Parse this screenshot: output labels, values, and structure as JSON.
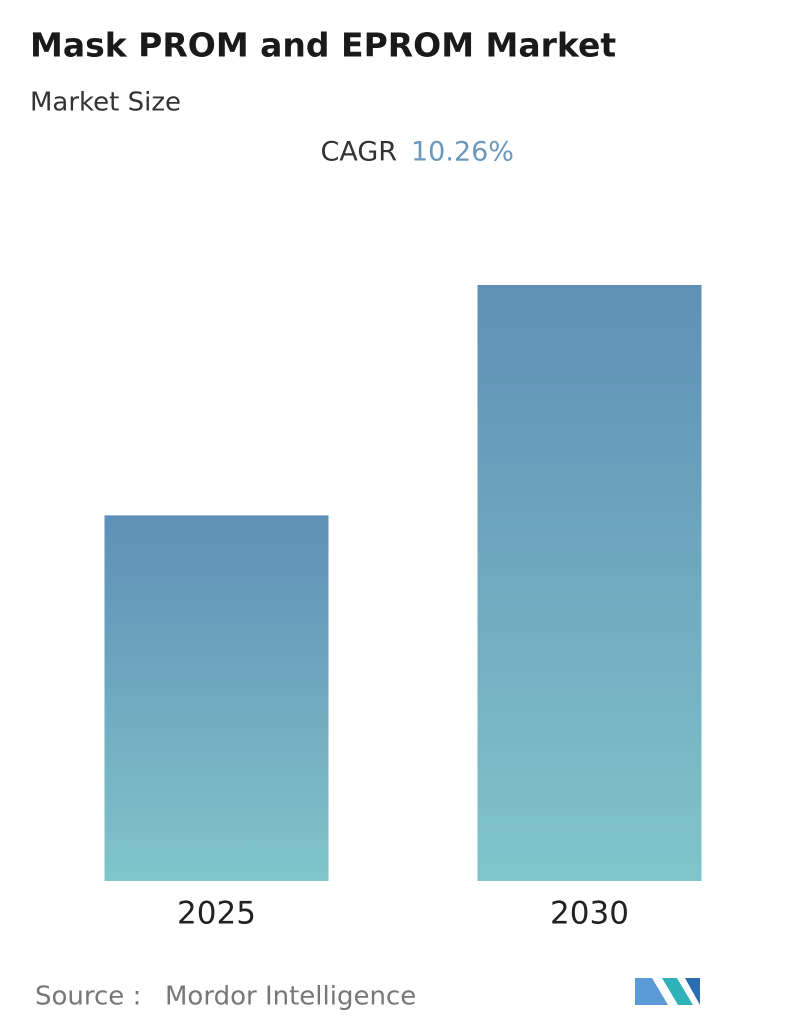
{
  "chart_data": {
    "type": "bar",
    "title": "Mask PROM and EPROM Market",
    "subtitle": "Market Size",
    "cagr_label": "CAGR",
    "cagr_value": "10.26%",
    "categories": [
      "2025",
      "2030"
    ],
    "values": [
      100,
      163
    ],
    "color_top": "#5f8fb6",
    "color_bottom": "#80c5ca",
    "source_label": "Source :",
    "source": "Mordor Intelligence"
  }
}
